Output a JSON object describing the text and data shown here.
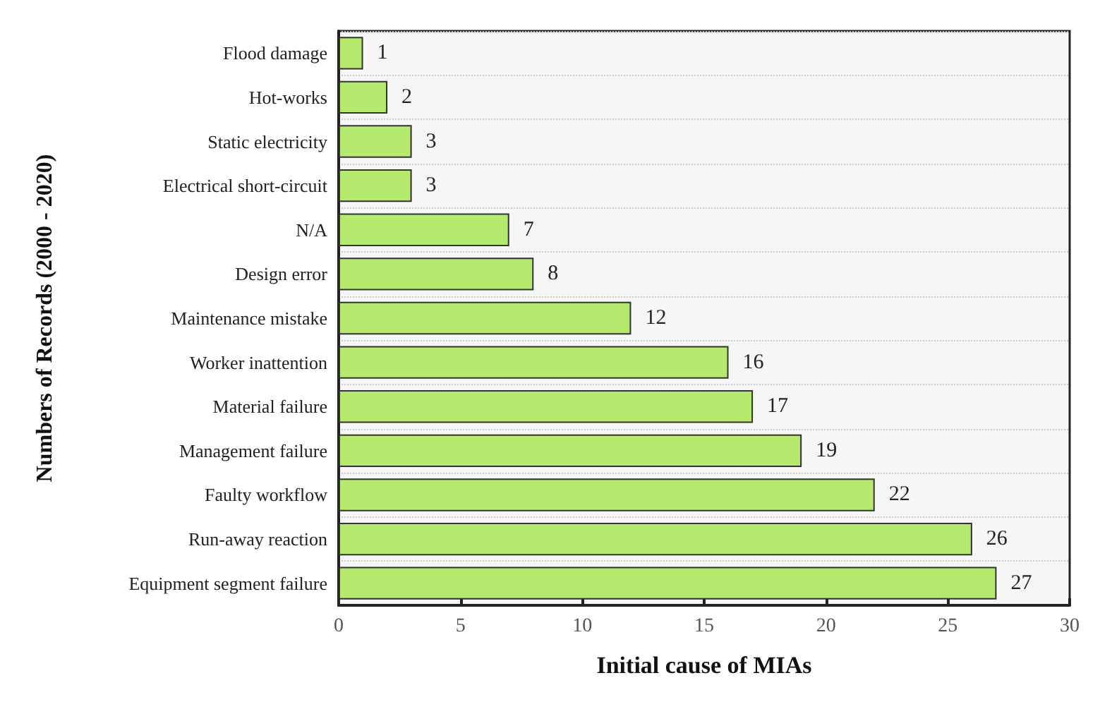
{
  "chart_data": {
    "type": "bar",
    "orientation": "horizontal",
    "xlabel": "Initial cause of MIAs",
    "ylabel": "Numbers of Records (2000 - 2020)",
    "categories": [
      "Flood damage",
      "Hot-works",
      "Static electricity",
      "Electrical short-circuit",
      "N/A",
      "Design error",
      "Maintenance mistake",
      "Worker inattention",
      "Material failure",
      "Management failure",
      "Faulty workflow",
      "Run-away reaction",
      "Equipment segment failure"
    ],
    "values": [
      1,
      2,
      3,
      3,
      7,
      8,
      12,
      16,
      17,
      19,
      22,
      26,
      27
    ],
    "color": "#b5ea6e",
    "xlim": [
      0,
      30
    ],
    "xticks": [
      0,
      5,
      10,
      15,
      20,
      25,
      30
    ],
    "grid": "y",
    "data_labels": true
  }
}
